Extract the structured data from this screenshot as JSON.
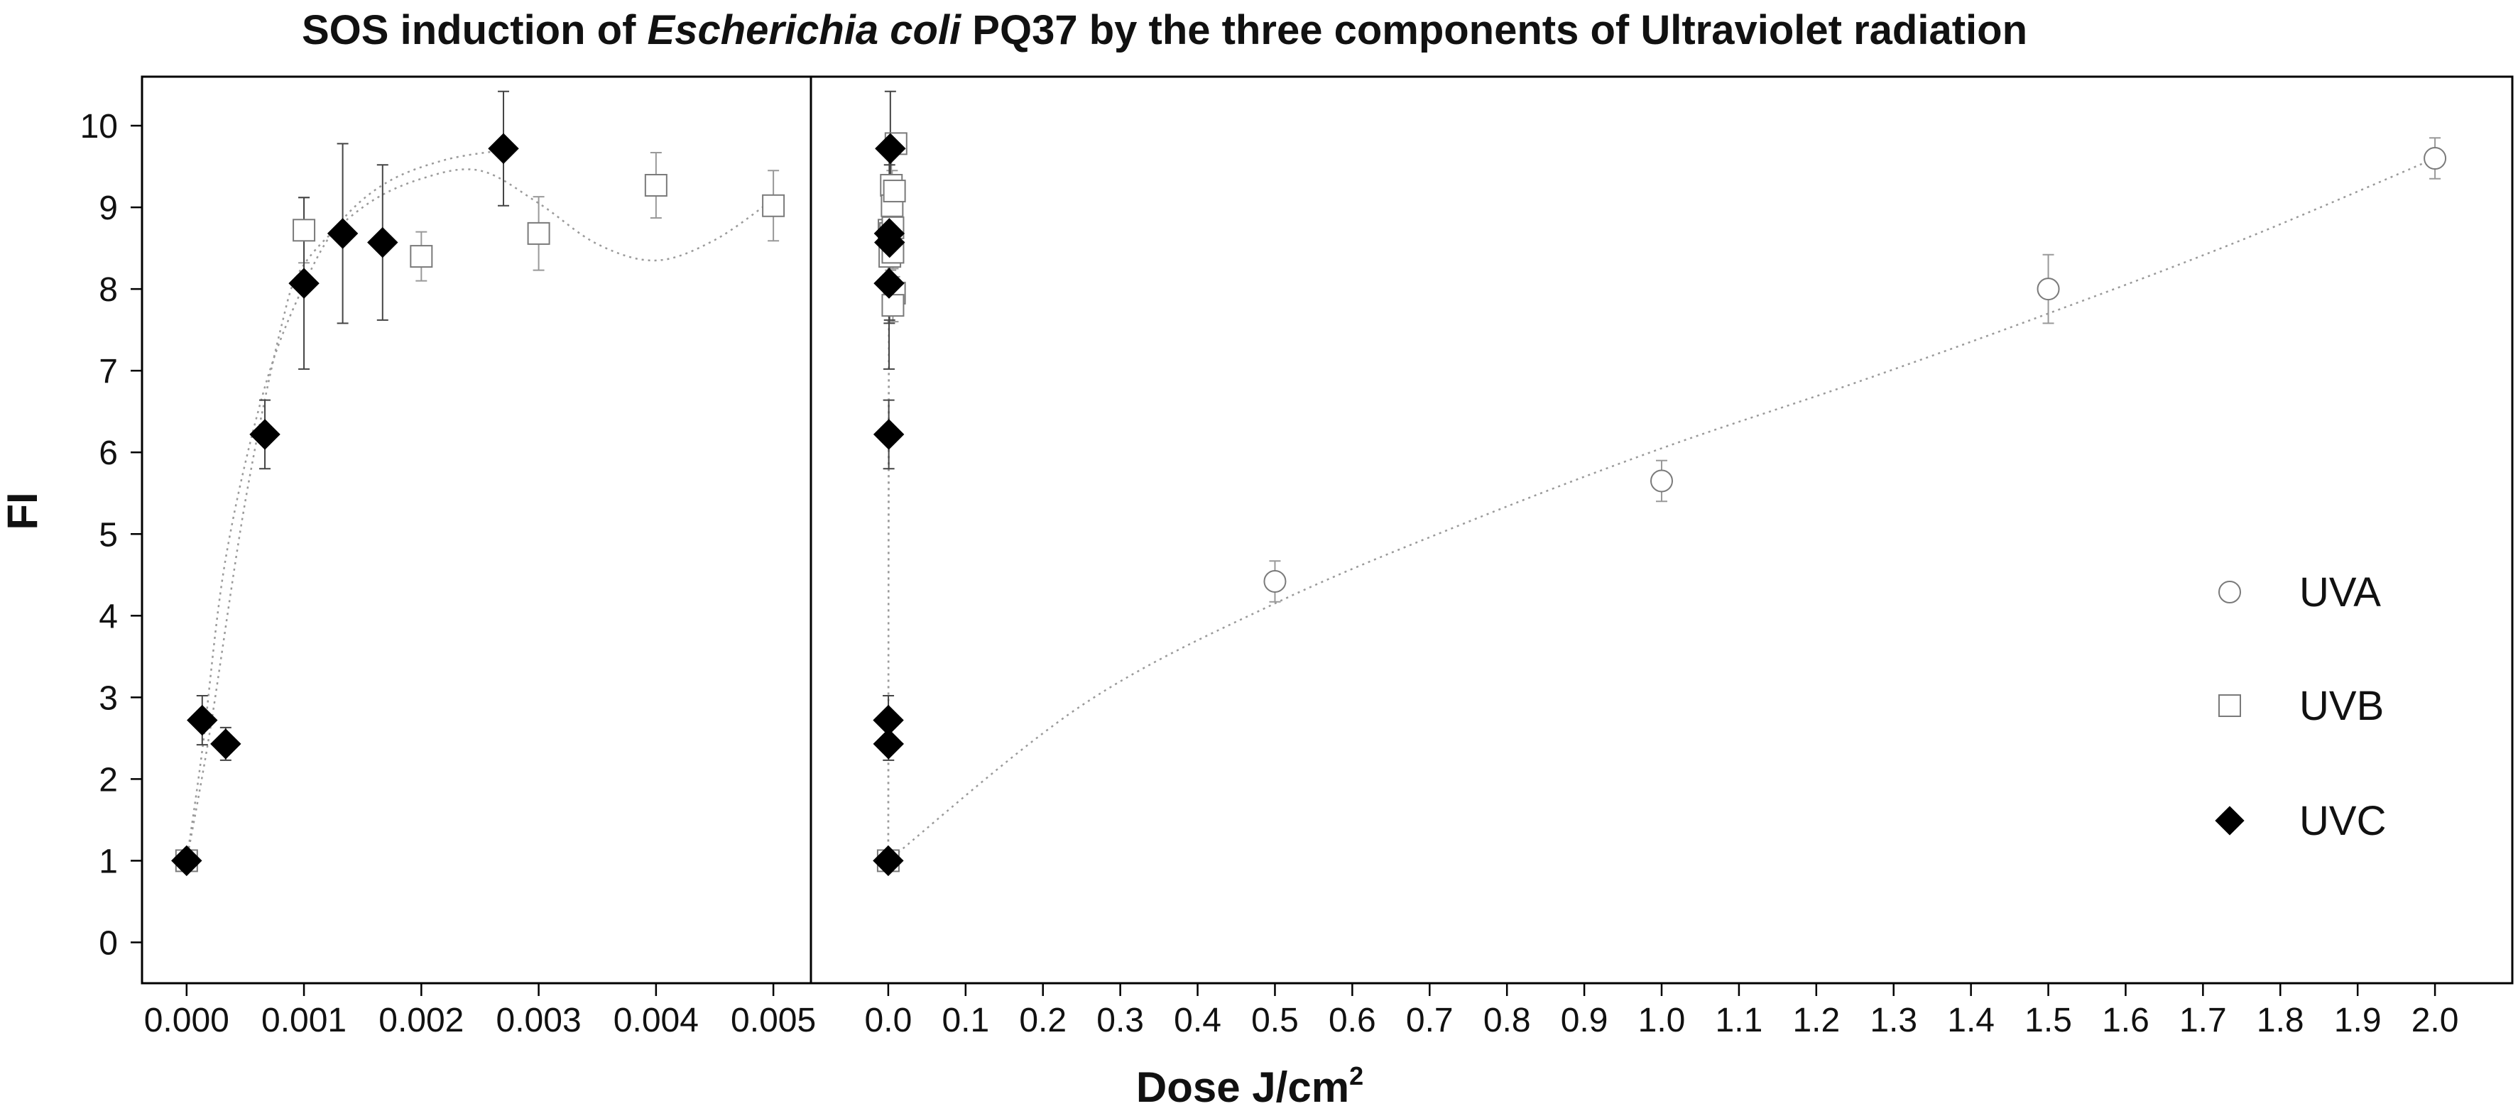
{
  "chart_data": {
    "type": "scatter",
    "title": "SOS induction of Escherichia coli PQ37 by the three components of Ultraviolet radiation",
    "title_parts": {
      "before": "SOS induction of ",
      "italic": "Escherichia coli",
      "after": " PQ37 by the three components of Ultraviolet radiation"
    },
    "ylabel": "FI",
    "xlabel": "Dose J/cm",
    "xlabel_superscript": "2",
    "ylim": [
      -0.5,
      10.6
    ],
    "yticks": [
      0,
      1,
      2,
      3,
      4,
      5,
      6,
      7,
      8,
      9,
      10
    ],
    "grid": false,
    "legend_position": "right",
    "panels": [
      {
        "name": "left",
        "xlim": [
          -0.00038,
          0.00532
        ],
        "xticks": [
          0.0,
          0.001,
          0.002,
          0.003,
          0.004,
          0.005
        ],
        "xtick_labels": [
          "0.000",
          "0.001",
          "0.002",
          "0.003",
          "0.004",
          "0.005"
        ]
      },
      {
        "name": "right",
        "xlim": [
          -0.1,
          2.1
        ],
        "xticks": [
          0.0,
          0.1,
          0.2,
          0.3,
          0.4,
          0.5,
          0.6,
          0.7,
          0.8,
          0.9,
          1.0,
          1.1,
          1.2,
          1.3,
          1.4,
          1.5,
          1.6,
          1.7,
          1.8,
          1.9,
          2.0
        ],
        "xtick_labels": [
          "0.0",
          "0.1",
          "0.2",
          "0.3",
          "0.4",
          "0.5",
          "0.6",
          "0.7",
          "0.8",
          "0.9",
          "1.0",
          "1.1",
          "1.2",
          "1.3",
          "1.4",
          "1.5",
          "1.6",
          "1.7",
          "1.8",
          "1.9",
          "2.0"
        ]
      }
    ],
    "series": [
      {
        "name": "UVA",
        "marker": "circle",
        "color": "#888888",
        "points": [
          {
            "x": 0.0,
            "y": 1.0,
            "err": 0.1
          },
          {
            "x": 0.5,
            "y": 4.42,
            "err": 0.25
          },
          {
            "x": 1.0,
            "y": 5.65,
            "err": 0.25
          },
          {
            "x": 1.5,
            "y": 8.0,
            "err": 0.42
          },
          {
            "x": 2.0,
            "y": 9.6,
            "err": 0.25
          }
        ],
        "fit": [
          [
            0.0,
            1.0
          ],
          [
            0.25,
            2.9
          ],
          [
            0.5,
            4.15
          ],
          [
            0.75,
            5.15
          ],
          [
            1.0,
            6.05
          ],
          [
            1.25,
            6.85
          ],
          [
            1.5,
            7.7
          ],
          [
            1.75,
            8.6
          ],
          [
            2.0,
            9.6
          ]
        ]
      },
      {
        "name": "UVB",
        "marker": "square",
        "color": "#888888",
        "points": [
          {
            "x": 0.0,
            "y": 1.0,
            "err": 0.1
          },
          {
            "x": 0.001,
            "y": 8.72,
            "err": 0.4
          },
          {
            "x": 0.002,
            "y": 8.4,
            "err": 0.3
          },
          {
            "x": 0.003,
            "y": 8.68,
            "err": 0.45
          },
          {
            "x": 0.004,
            "y": 9.27,
            "err": 0.4
          },
          {
            "x": 0.005,
            "y": 9.02,
            "err": 0.43
          },
          {
            "x": 0.01,
            "y": 9.78,
            "err": 0.1
          },
          {
            "x": 0.008,
            "y": 9.2,
            "err": 0.2
          },
          {
            "x": 0.006,
            "y": 8.75,
            "err": 0.2
          },
          {
            "x": 0.006,
            "y": 8.45,
            "err": 0.2
          },
          {
            "x": 0.008,
            "y": 7.95,
            "err": 0.2
          },
          {
            "x": 0.006,
            "y": 7.8,
            "err": 0.2
          }
        ],
        "fit": [
          [
            0.0,
            1.0
          ],
          [
            0.0002,
            2.6
          ],
          [
            0.0005,
            5.4
          ],
          [
            0.0008,
            7.5
          ],
          [
            0.001,
            8.3
          ],
          [
            0.0015,
            9.0
          ],
          [
            0.002,
            9.35
          ],
          [
            0.0025,
            9.45
          ],
          [
            0.003,
            9.05
          ],
          [
            0.0035,
            8.55
          ],
          [
            0.004,
            8.35
          ],
          [
            0.0045,
            8.6
          ],
          [
            0.005,
            9.1
          ]
        ]
      },
      {
        "name": "UVC",
        "marker": "diamond",
        "color": "#000000",
        "points": [
          {
            "x": 0.0,
            "y": 1.0,
            "err": 0.1
          },
          {
            "x": 0.000133,
            "y": 2.72,
            "err": 0.3
          },
          {
            "x": 0.000333,
            "y": 2.43,
            "err": 0.2
          },
          {
            "x": 0.000667,
            "y": 6.22,
            "err": 0.42
          },
          {
            "x": 0.001,
            "y": 8.07,
            "err": 1.05
          },
          {
            "x": 0.00133,
            "y": 8.68,
            "err": 1.1
          },
          {
            "x": 0.00167,
            "y": 8.57,
            "err": 0.95
          },
          {
            "x": 0.0027,
            "y": 9.72,
            "err": 0.7
          }
        ],
        "fit": [
          [
            0.0,
            1.0
          ],
          [
            0.000133,
            2.35
          ],
          [
            0.000333,
            4.7
          ],
          [
            0.000667,
            6.8
          ],
          [
            0.001,
            8.05
          ],
          [
            0.0013,
            8.8
          ],
          [
            0.0017,
            9.3
          ],
          [
            0.0022,
            9.58
          ],
          [
            0.0027,
            9.7
          ]
        ]
      }
    ]
  }
}
